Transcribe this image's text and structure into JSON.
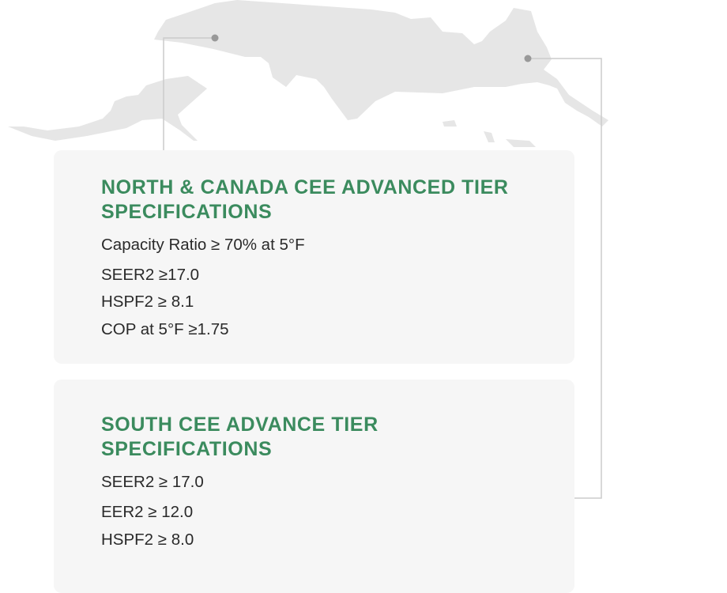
{
  "colors": {
    "accent": "#3b8b5e",
    "card_bg": "#f6f6f6",
    "map": "#e6e6e6",
    "marker": "#999999",
    "connector": "#cccccc"
  },
  "north": {
    "title": "NORTH & CANADA CEE ADVANCED TIER SPECIFICATIONS",
    "specs": [
      "Capacity Ratio ≥ 70% at 5°F",
      "SEER2 ≥17.0",
      "HSPF2 ≥ 8.1",
      "COP at 5°F ≥1.75"
    ]
  },
  "south": {
    "title": "SOUTH CEE ADVANCE TIER SPECIFICATIONS",
    "specs": [
      "SEER2 ≥ 17.0",
      "EER2 ≥ 12.0",
      "HSPF2 ≥ 8.0"
    ]
  }
}
